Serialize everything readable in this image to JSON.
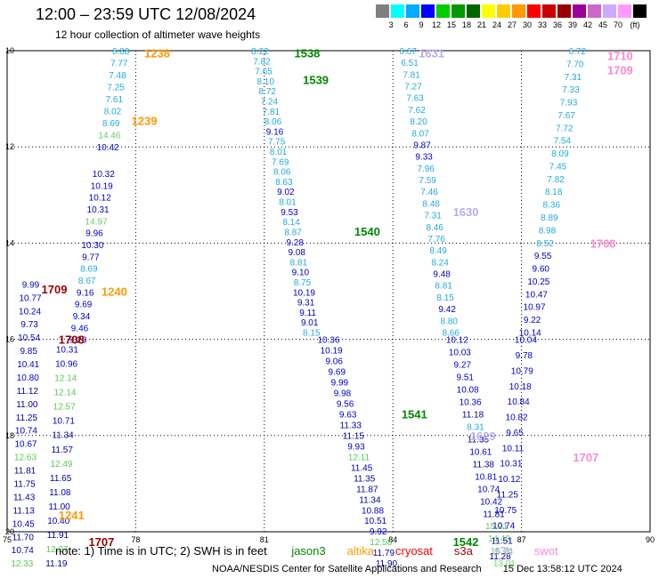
{
  "header": {
    "title": "12:00 – 23:59 UTC 12/08/2024",
    "subtitle": "12 hour collection of altimeter wave heights"
  },
  "colorbar": {
    "unit": "(ft)",
    "colors": [
      "#808080",
      "#00ffff",
      "#00aaff",
      "#0000ff",
      "#00cc00",
      "#009900",
      "#006600",
      "#ffff00",
      "#ffcc00",
      "#ff9900",
      "#ff0000",
      "#cc0000",
      "#990000",
      "#990099",
      "#cc66cc",
      "#ccaaff",
      "#ff99ff",
      "#000000"
    ],
    "labels": [
      "3",
      "6",
      "9",
      "12",
      "15",
      "18",
      "21",
      "24",
      "27",
      "30",
      "33",
      "36",
      "39",
      "42",
      "45",
      "70"
    ]
  },
  "axes": {
    "x_ticks": [
      "75",
      "78",
      "81",
      "84",
      "87",
      "90"
    ],
    "y_ticks": [
      "10",
      "12",
      "14",
      "16",
      "18",
      "20"
    ]
  },
  "notes": {
    "prefix": "note: 1) Time is in UTC; 2) SWH is in feet",
    "satellites": [
      {
        "name": "jason3",
        "color": "#008800"
      },
      {
        "name": "altika",
        "color": "#ff9900"
      },
      {
        "name": "cryosat",
        "color": "#ff0000"
      },
      {
        "name": "s3a",
        "color": "#990000"
      },
      {
        "name": "s3b",
        "color": "#bbaaee"
      },
      {
        "name": "swot",
        "color": "#ff88cc"
      }
    ],
    "credit": "NOAA/NESDIS Center for Satellite Applications and Research",
    "generated": "15 Dec 13:58:12 UTC 2024"
  },
  "time_labels": [
    {
      "t": "1238",
      "lon": 78.2,
      "lat": 10.05,
      "color": "#ff9900"
    },
    {
      "t": "1239",
      "lon": 77.9,
      "lat": 11.45,
      "color": "#ff9900"
    },
    {
      "t": "1240",
      "lon": 77.2,
      "lat": 15.0,
      "color": "#ff9900"
    },
    {
      "t": "1241",
      "lon": 76.2,
      "lat": 19.65,
      "color": "#ff9900"
    },
    {
      "t": "1709",
      "lon": 75.8,
      "lat": 14.95,
      "color": "#990000"
    },
    {
      "t": "1708",
      "lon": 76.2,
      "lat": 16.0,
      "color": "#990000"
    },
    {
      "t": "1707",
      "lon": 76.9,
      "lat": 20.2,
      "color": "#990000"
    },
    {
      "t": "1538",
      "lon": 81.7,
      "lat": 10.05,
      "color": "#008800"
    },
    {
      "t": "1539",
      "lon": 81.9,
      "lat": 10.6,
      "color": "#008800"
    },
    {
      "t": "1540",
      "lon": 83.1,
      "lat": 13.75,
      "color": "#008800"
    },
    {
      "t": "1541",
      "lon": 84.2,
      "lat": 17.55,
      "color": "#008800"
    },
    {
      "t": "1542",
      "lon": 85.4,
      "lat": 20.2,
      "color": "#008800"
    },
    {
      "t": "1631",
      "lon": 84.6,
      "lat": 10.05,
      "color": "#bbaaee"
    },
    {
      "t": "1630",
      "lon": 85.4,
      "lat": 13.35,
      "color": "#bbaaee"
    },
    {
      "t": "1629",
      "lon": 85.8,
      "lat": 18.0,
      "color": "#bbaaee"
    },
    {
      "t": "1710",
      "lon": 89.0,
      "lat": 10.1,
      "color": "#ff88cc"
    },
    {
      "t": "1709",
      "lon": 89.0,
      "lat": 10.4,
      "color": "#ff88cc"
    },
    {
      "t": "1708",
      "lon": 88.6,
      "lat": 14.0,
      "color": "#ff88cc"
    },
    {
      "t": "1707",
      "lon": 88.2,
      "lat": 18.45,
      "color": "#ff88cc"
    }
  ],
  "swh_tracks": [
    {
      "sat": "altika",
      "lon_start": 77.65,
      "lon_end": 77.35,
      "lat_start": 10.0,
      "lat_end": 12.0,
      "values": [
        "6.88",
        "7.77",
        "7.48",
        "7.25",
        "7.61",
        "8.02",
        "8.69",
        "14.46",
        "10.42"
      ]
    },
    {
      "sat": "altika",
      "lon_start": 77.25,
      "lon_end": 76.65,
      "lat_start": 12.55,
      "lat_end": 16.0,
      "values": [
        "10.32",
        "10.19",
        "10.12",
        "10.31",
        "14.97",
        "9.96",
        "10.30",
        "9.77",
        "8.69",
        "8.67",
        "9.16",
        "9.69",
        "9.34",
        "9.46",
        "9.23"
      ]
    },
    {
      "sat": "altika",
      "lon_start": 76.4,
      "lon_end": 76.15,
      "lat_start": 16.2,
      "lat_end": 20.65,
      "values": [
        "10.31",
        "10.96",
        "12.14",
        "12.14",
        "12.57",
        "10.71",
        "11.34",
        "11.57",
        "12.49",
        "11.65",
        "11.08",
        "11.00",
        "10.40",
        "11.91",
        "12.27",
        "11.19"
      ]
    },
    {
      "sat": "s3a",
      "lon_start": 75.55,
      "lon_end": 75.35,
      "lat_start": 14.85,
      "lat_end": 20.65,
      "values": [
        "9.99",
        "10.77",
        "10.24",
        "9.73",
        "10.54",
        "9.85",
        "10.41",
        "10.80",
        "11.12",
        "11.00",
        "11.25",
        "10.74",
        "10.67",
        "12.63",
        "11.81",
        "11.75",
        "11.43",
        "11.13",
        "10.45",
        "11.70",
        "10.74",
        "12.33"
      ]
    },
    {
      "sat": "jason3",
      "lon_start": 80.9,
      "lon_end": 82.1,
      "lat_start": 10.0,
      "lat_end": 15.85,
      "values": [
        "8.22",
        "7.82",
        "7.65",
        "8.10",
        "8.72",
        "7.24",
        "7.81",
        "8.06",
        "9.16",
        "7.75",
        "8.01",
        "7.69",
        "8.06",
        "8.63",
        "9.02",
        "8.01",
        "9.53",
        "8.14",
        "8.87",
        "9.28",
        "9.08",
        "8.81",
        "9.10",
        "8.75",
        "10.19",
        "9.31",
        "9.11",
        "9.01",
        "8.15"
      ]
    },
    {
      "sat": "jason3",
      "lon_start": 82.5,
      "lon_end": 83.85,
      "lat_start": 16.0,
      "lat_end": 20.65,
      "values": [
        "10.36",
        "10.19",
        "9.06",
        "9.69",
        "9.99",
        "9.98",
        "9.56",
        "9.63",
        "11.33",
        "11.15",
        "9.93",
        "12.11",
        "11.45",
        "11.35",
        "11.87",
        "11.34",
        "10.88",
        "10.51",
        "9.92",
        "12.58",
        "11.79",
        "11.90"
      ]
    },
    {
      "sat": "s3b",
      "lon_start": 84.35,
      "lon_end": 85.35,
      "lat_start": 10.0,
      "lat_end": 15.85,
      "values": [
        "6.67",
        "6.51",
        "7.81",
        "7.27",
        "7.63",
        "7.62",
        "8.20",
        "8.07",
        "9.87",
        "9.33",
        "7.96",
        "7.59",
        "7.46",
        "8.48",
        "7.31",
        "8.46",
        "7.76",
        "8.49",
        "8.24",
        "9.48",
        "8.81",
        "8.15",
        "9.42",
        "8.80",
        "8.66"
      ]
    },
    {
      "sat": "s3b",
      "lon_start": 85.5,
      "lon_end": 86.6,
      "lat_start": 16.0,
      "lat_end": 20.65,
      "values": [
        "10.12",
        "10.03",
        "9.27",
        "9.51",
        "10.08",
        "10.36",
        "11.18",
        "8.31",
        "11.35",
        "10.61",
        "11.38",
        "10.81",
        "10.74",
        "10.42",
        "11.81",
        "15.21",
        "14.43",
        "15.24",
        "13.01"
      ]
    },
    {
      "sat": "swot",
      "lon_start": 88.3,
      "lon_end": 87.2,
      "lat_start": 10.0,
      "lat_end": 15.85,
      "values": [
        "6.72",
        "7.70",
        "7.31",
        "7.33",
        "7.93",
        "7.67",
        "7.72",
        "7.54",
        "8.09",
        "7.45",
        "7.82",
        "8.18",
        "8.36",
        "8.89",
        "8.98",
        "8.52",
        "9.55",
        "9.60",
        "10.25",
        "10.47",
        "10.97",
        "9.22",
        "10.14"
      ]
    },
    {
      "sat": "swot",
      "lon_start": 87.1,
      "lon_end": 86.5,
      "lat_start": 16.0,
      "lat_end": 20.5,
      "values": [
        "10.04",
        "9.78",
        "10.79",
        "10.18",
        "10.84",
        "10.82",
        "9.65",
        "10.11",
        "10.31",
        "10.12",
        "11.25",
        "10.75",
        "10.74",
        "11.51",
        "11.28"
      ]
    }
  ]
}
